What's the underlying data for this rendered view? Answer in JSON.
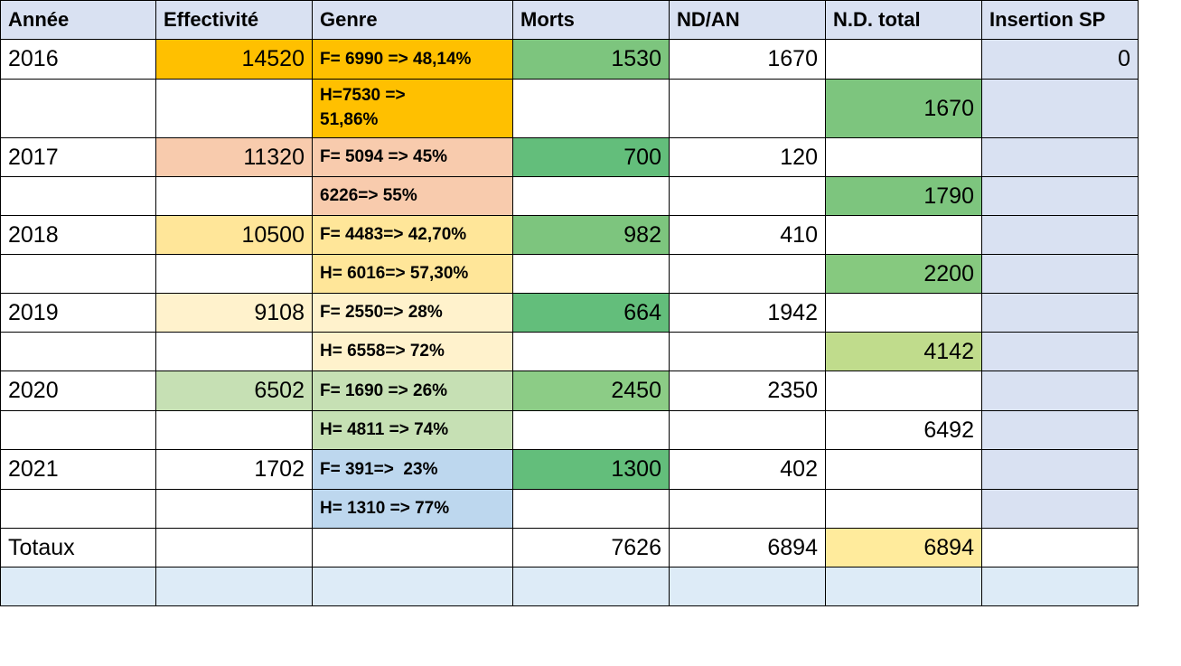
{
  "table": {
    "header": [
      "Année",
      "Effectivité",
      "Genre",
      "Morts",
      "ND/AN",
      "N.D. total",
      "Insertion SP"
    ],
    "rows": [
      [
        2016,
        14520,
        "F= 6990 => 48,14%",
        1530,
        1670,
        null,
        0
      ],
      [
        null,
        null,
        "H=7530 => 51,86%",
        null,
        null,
        1670,
        null
      ],
      [
        2017,
        11320,
        "F= 5094 => 45%",
        700,
        120,
        null,
        null
      ],
      [
        null,
        null,
        "6226=> 55%",
        null,
        null,
        1790,
        null
      ],
      [
        2018,
        10500,
        "F= 4483=> 42,70%",
        982,
        410,
        null,
        null
      ],
      [
        null,
        null,
        "H= 6016=> 57,30%",
        null,
        null,
        2200,
        null
      ],
      [
        2019,
        9108,
        "F= 2550=> 28%",
        664,
        1942,
        null,
        null
      ],
      [
        null,
        null,
        "H= 6558=> 72%",
        null,
        null,
        4142,
        null
      ],
      [
        2020,
        6502,
        "F= 1690 => 26%",
        2450,
        2350,
        null,
        null
      ],
      [
        null,
        null,
        "H= 4811 => 74%",
        null,
        null,
        6492,
        null
      ],
      [
        2021,
        1702,
        "F= 391=>  23%",
        1300,
        402,
        null,
        null
      ],
      [
        null,
        null,
        "H= 1310 => 77%",
        null,
        null,
        null,
        null
      ],
      [
        "Totaux",
        null,
        null,
        7626,
        6894,
        6894,
        null
      ],
      [
        null,
        null,
        null,
        null,
        null,
        null,
        null
      ]
    ]
  }
}
